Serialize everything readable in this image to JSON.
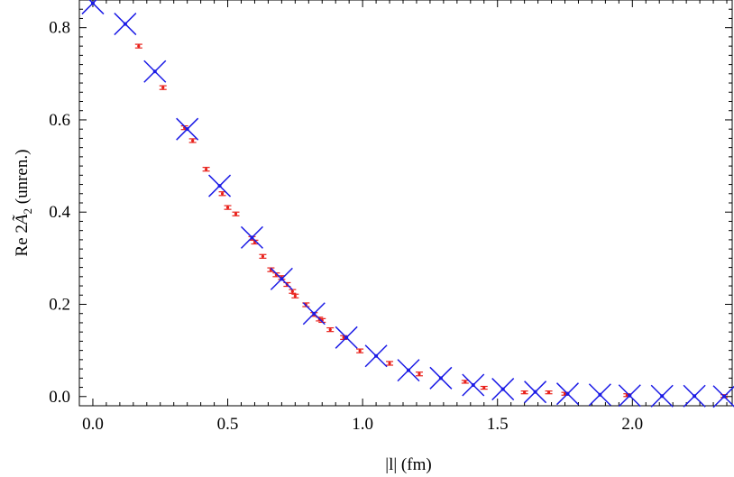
{
  "chart_data": {
    "type": "scatter",
    "title": "",
    "xlabel": "|l| (fm)",
    "ylabel": "Re 2Ã₂ (unren.)",
    "ylabel_parts": {
      "prefix": "Re 2",
      "symbol": "Ã",
      "subscript": "2",
      "suffix": " (unren.)"
    },
    "xlim": [
      -0.05,
      2.37
    ],
    "ylim": [
      -0.02,
      0.86
    ],
    "x_ticks": [
      0.0,
      0.5,
      1.0,
      1.5,
      2.0
    ],
    "x_tick_labels": [
      "0.0",
      "0.5",
      "1.0",
      "1.5",
      "2.0"
    ],
    "y_ticks": [
      0.0,
      0.2,
      0.4,
      0.6,
      0.8
    ],
    "y_tick_labels": [
      "0.0",
      "0.2",
      "0.4",
      "0.6",
      "0.8"
    ],
    "grid": false,
    "series": [
      {
        "name": "red-points",
        "marker": "errorbar",
        "color": "#e8201a",
        "x": [
          0.17,
          0.26,
          0.34,
          0.37,
          0.42,
          0.48,
          0.5,
          0.53,
          0.59,
          0.6,
          0.63,
          0.66,
          0.68,
          0.7,
          0.72,
          0.74,
          0.75,
          0.79,
          0.82,
          0.84,
          0.85,
          0.88,
          0.93,
          0.99,
          1.1,
          1.21,
          1.38,
          1.45,
          1.6,
          1.69,
          1.75,
          1.98,
          2.34
        ],
        "y": [
          0.76,
          0.67,
          0.583,
          0.555,
          0.493,
          0.44,
          0.41,
          0.396,
          0.343,
          0.335,
          0.304,
          0.275,
          0.264,
          0.258,
          0.243,
          0.228,
          0.218,
          0.199,
          0.178,
          0.168,
          0.165,
          0.145,
          0.128,
          0.099,
          0.072,
          0.049,
          0.032,
          0.019,
          0.009,
          0.009,
          0.006,
          0.003,
          0.001
        ],
        "err": [
          0.004,
          0.004,
          0.004,
          0.004,
          0.004,
          0.004,
          0.004,
          0.004,
          0.004,
          0.004,
          0.004,
          0.004,
          0.004,
          0.004,
          0.004,
          0.004,
          0.004,
          0.004,
          0.004,
          0.004,
          0.004,
          0.004,
          0.004,
          0.004,
          0.004,
          0.004,
          0.003,
          0.003,
          0.003,
          0.003,
          0.003,
          0.003,
          0.003
        ]
      },
      {
        "name": "blue-crosses",
        "marker": "cross",
        "color": "#1a1ae6",
        "x": [
          0.0,
          0.12,
          0.23,
          0.35,
          0.47,
          0.59,
          0.7,
          0.82,
          0.94,
          1.05,
          1.17,
          1.29,
          1.41,
          1.52,
          1.64,
          1.76,
          1.88,
          1.99,
          2.11,
          2.23,
          2.34
        ],
        "y": [
          0.853,
          0.808,
          0.705,
          0.58,
          0.457,
          0.345,
          0.255,
          0.18,
          0.128,
          0.088,
          0.057,
          0.04,
          0.025,
          0.016,
          0.01,
          0.006,
          0.004,
          0.002,
          0.001,
          0.001,
          0.0
        ]
      }
    ]
  }
}
